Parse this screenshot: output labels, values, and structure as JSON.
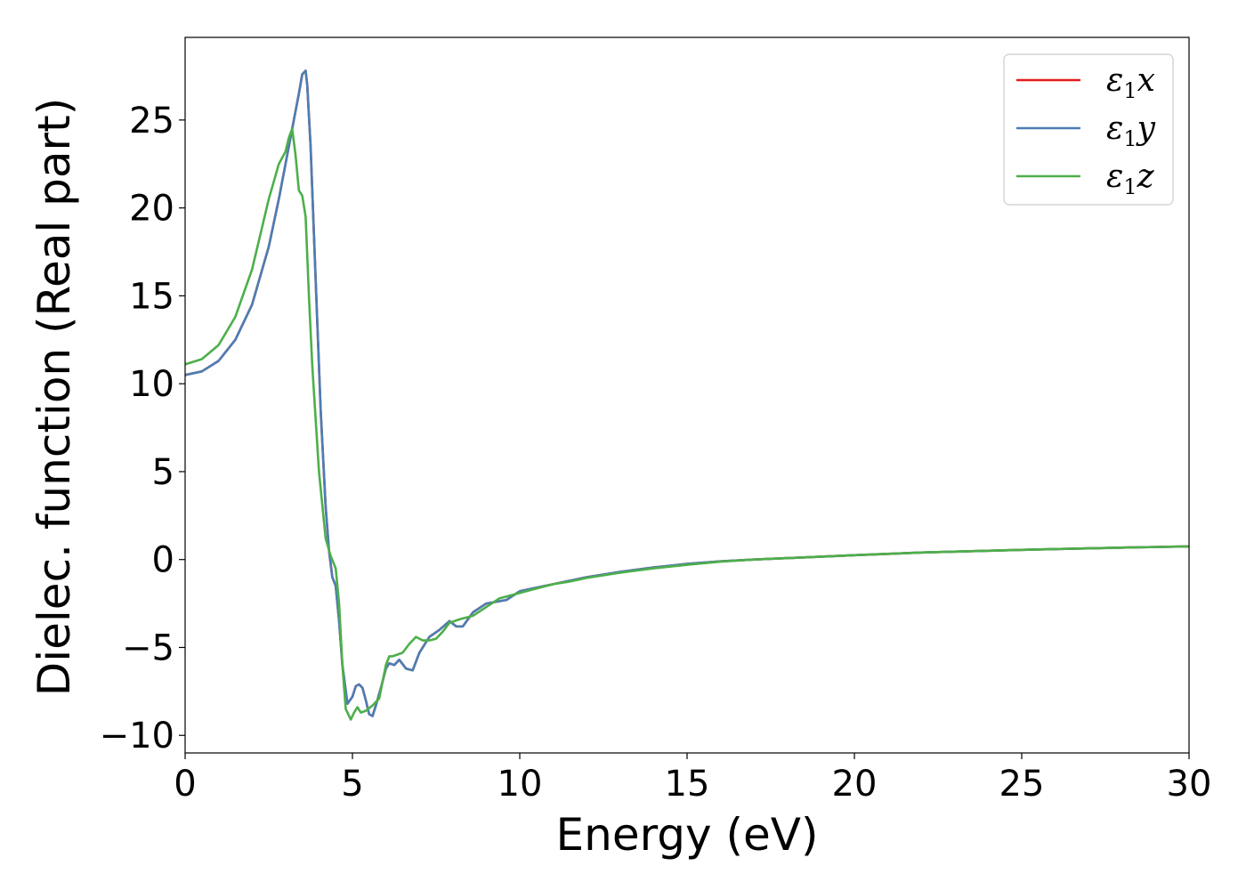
{
  "chart_data": {
    "type": "line",
    "xlabel": "Energy (eV)",
    "ylabel": "Dielec. function (Real part)",
    "xlim": [
      0,
      30
    ],
    "ylim": [
      -11,
      29.7
    ],
    "xticks": [
      0,
      5,
      10,
      15,
      20,
      25,
      30
    ],
    "xtick_labels": [
      "0",
      "5",
      "10",
      "15",
      "20",
      "25",
      "30"
    ],
    "yticks": [
      -10,
      -5,
      0,
      5,
      10,
      15,
      20,
      25
    ],
    "ytick_labels": [
      "−10",
      "−5",
      "0",
      "5",
      "10",
      "15",
      "20",
      "25"
    ],
    "grid": false,
    "legend_position": "top-right",
    "series": [
      {
        "name": "ε₁x",
        "legend_main": "ε",
        "legend_sub": "1",
        "legend_suffix": "x",
        "color": "#e41a1c",
        "x": [
          0,
          0.5,
          1.0,
          1.5,
          2.0,
          2.5,
          2.8,
          3.0,
          3.2,
          3.4,
          3.5,
          3.6,
          3.65,
          3.75,
          3.9,
          4.05,
          4.2,
          4.3,
          4.4,
          4.5,
          4.6,
          4.7,
          4.85,
          5.0,
          5.1,
          5.2,
          5.3,
          5.4,
          5.5,
          5.6,
          5.7,
          5.85,
          6.0,
          6.1,
          6.25,
          6.4,
          6.6,
          6.8,
          7.0,
          7.3,
          7.6,
          7.9,
          8.1,
          8.3,
          8.6,
          9.0,
          9.3,
          9.6,
          10.0,
          10.5,
          11.0,
          12.0,
          13.0,
          14.0,
          15.0,
          16.0,
          17.0,
          18.0,
          20.0,
          22.0,
          24.0,
          26.0,
          28.0,
          30.0
        ],
        "y": [
          10.5,
          10.7,
          11.3,
          12.5,
          14.5,
          17.8,
          20.5,
          22.5,
          24.5,
          26.5,
          27.6,
          27.8,
          27.0,
          23.5,
          16.0,
          8.5,
          3.0,
          0.5,
          -1.0,
          -1.5,
          -3.5,
          -6.0,
          -8.2,
          -7.8,
          -7.2,
          -7.1,
          -7.3,
          -8.0,
          -8.8,
          -8.9,
          -8.3,
          -7.3,
          -6.2,
          -5.9,
          -6.0,
          -5.7,
          -6.2,
          -6.3,
          -5.3,
          -4.4,
          -4.0,
          -3.5,
          -3.8,
          -3.8,
          -3.0,
          -2.5,
          -2.4,
          -2.3,
          -1.8,
          -1.6,
          -1.4,
          -1.0,
          -0.7,
          -0.45,
          -0.25,
          -0.1,
          0.0,
          0.08,
          0.25,
          0.4,
          0.5,
          0.6,
          0.68,
          0.75
        ]
      },
      {
        "name": "ε₁y",
        "legend_main": "ε",
        "legend_sub": "1",
        "legend_suffix": "y",
        "color": "#4a7eb4",
        "x": [
          0,
          0.5,
          1.0,
          1.5,
          2.0,
          2.5,
          2.8,
          3.0,
          3.2,
          3.4,
          3.5,
          3.6,
          3.65,
          3.75,
          3.9,
          4.05,
          4.2,
          4.3,
          4.4,
          4.5,
          4.6,
          4.7,
          4.85,
          5.0,
          5.1,
          5.2,
          5.3,
          5.4,
          5.5,
          5.6,
          5.7,
          5.85,
          6.0,
          6.1,
          6.25,
          6.4,
          6.6,
          6.8,
          7.0,
          7.3,
          7.6,
          7.9,
          8.1,
          8.3,
          8.6,
          9.0,
          9.3,
          9.6,
          10.0,
          10.5,
          11.0,
          12.0,
          13.0,
          14.0,
          15.0,
          16.0,
          17.0,
          18.0,
          20.0,
          22.0,
          24.0,
          26.0,
          28.0,
          30.0
        ],
        "y": [
          10.5,
          10.7,
          11.3,
          12.5,
          14.5,
          17.8,
          20.5,
          22.5,
          24.5,
          26.5,
          27.6,
          27.8,
          27.0,
          23.5,
          16.0,
          8.5,
          3.0,
          0.5,
          -1.0,
          -1.5,
          -3.5,
          -6.0,
          -8.2,
          -7.8,
          -7.2,
          -7.1,
          -7.3,
          -8.0,
          -8.8,
          -8.9,
          -8.3,
          -7.3,
          -6.2,
          -5.9,
          -6.0,
          -5.7,
          -6.2,
          -6.3,
          -5.3,
          -4.4,
          -4.0,
          -3.5,
          -3.8,
          -3.8,
          -3.0,
          -2.5,
          -2.4,
          -2.3,
          -1.8,
          -1.6,
          -1.4,
          -1.0,
          -0.7,
          -0.45,
          -0.25,
          -0.1,
          0.0,
          0.08,
          0.25,
          0.4,
          0.5,
          0.6,
          0.68,
          0.75
        ]
      },
      {
        "name": "ε₁z",
        "legend_main": "ε",
        "legend_sub": "1",
        "legend_suffix": "z",
        "color": "#4daf4a",
        "x": [
          0,
          0.5,
          1.0,
          1.5,
          2.0,
          2.5,
          2.8,
          3.0,
          3.1,
          3.2,
          3.3,
          3.4,
          3.5,
          3.6,
          3.7,
          3.8,
          4.0,
          4.2,
          4.35,
          4.5,
          4.6,
          4.7,
          4.8,
          4.95,
          5.05,
          5.15,
          5.25,
          5.4,
          5.6,
          5.8,
          6.0,
          6.1,
          6.2,
          6.35,
          6.5,
          6.7,
          6.9,
          7.1,
          7.3,
          7.5,
          7.7,
          7.9,
          8.2,
          8.6,
          9.0,
          9.4,
          9.8,
          10.2,
          10.6,
          11.0,
          11.5,
          12.0,
          13.0,
          14.0,
          15.0,
          16.0,
          17.0,
          18.0,
          20.0,
          22.0,
          24.0,
          26.0,
          28.0,
          30.0
        ],
        "y": [
          11.1,
          11.4,
          12.2,
          13.8,
          16.5,
          20.5,
          22.5,
          23.2,
          24.0,
          24.5,
          23.0,
          21.0,
          20.7,
          19.5,
          15.0,
          11.0,
          5.0,
          1.2,
          0.2,
          -0.5,
          -2.5,
          -6.0,
          -8.5,
          -9.1,
          -8.7,
          -8.4,
          -8.7,
          -8.6,
          -8.3,
          -7.9,
          -6.0,
          -5.5,
          -5.5,
          -5.4,
          -5.3,
          -4.8,
          -4.4,
          -4.6,
          -4.6,
          -4.5,
          -4.1,
          -3.6,
          -3.4,
          -3.2,
          -2.7,
          -2.2,
          -2.0,
          -1.8,
          -1.6,
          -1.4,
          -1.25,
          -1.05,
          -0.75,
          -0.5,
          -0.3,
          -0.12,
          0.0,
          0.08,
          0.25,
          0.4,
          0.5,
          0.6,
          0.68,
          0.75
        ]
      }
    ]
  }
}
